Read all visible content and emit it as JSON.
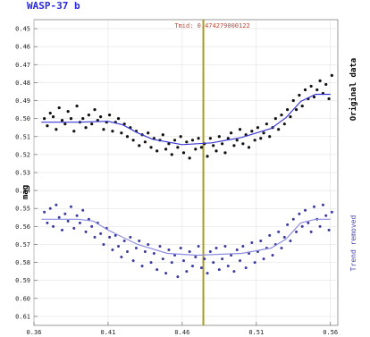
{
  "colors": {
    "original": "#111111",
    "detrended": "#3a3aa0",
    "fit": "#3b3bd4",
    "marker": "#a89a22",
    "title": "#2a2ae0",
    "annotation": "#c04a3a",
    "right_label_bottom": "#4a4ab0"
  },
  "chart_data": {
    "type": "scatter",
    "title": "WASP-37 b",
    "xlabel": "",
    "ylabel": "mag",
    "right_label_top": "Original data",
    "right_label_bottom": "Trend removed",
    "annotation": "Tmid: 0.474279000122",
    "tmid": 0.474279,
    "xlim": [
      0.36,
      0.565
    ],
    "ylim": [
      0.615,
      0.445
    ],
    "x_ticks": [
      0.36,
      0.41,
      0.46,
      0.51,
      0.56
    ],
    "x_tick_labels": [
      "0.36",
      "0.41",
      "0.46",
      "0.51",
      "0.56"
    ],
    "y_ticks": [
      0.45,
      0.46,
      0.47,
      0.48,
      0.49,
      0.5,
      0.51,
      0.52,
      0.53,
      0.54,
      0.55,
      0.56,
      0.57,
      0.58,
      0.59,
      0.6,
      0.61
    ],
    "y_tick_labels": [
      "0.45",
      "0.46",
      "0.47",
      "0.48",
      "0.49",
      "0.50",
      "0.51",
      "0.52",
      "0.53",
      "0.54",
      "0.55",
      "0.56",
      "0.57",
      "0.58",
      "0.59",
      "0.60",
      "0.61"
    ],
    "series": [
      {
        "name": "Original data",
        "fit": [
          [
            0.365,
            0.502
          ],
          [
            0.39,
            0.502
          ],
          [
            0.41,
            0.5015
          ],
          [
            0.42,
            0.5035
          ],
          [
            0.43,
            0.508
          ],
          [
            0.44,
            0.5115
          ],
          [
            0.46,
            0.5145
          ],
          [
            0.48,
            0.5135
          ],
          [
            0.5,
            0.5105
          ],
          [
            0.52,
            0.5055
          ],
          [
            0.53,
            0.4995
          ],
          [
            0.54,
            0.4905
          ],
          [
            0.55,
            0.4865
          ],
          [
            0.56,
            0.4865
          ]
        ],
        "points": [
          [
            0.367,
            0.5
          ],
          [
            0.369,
            0.504
          ],
          [
            0.371,
            0.497
          ],
          [
            0.373,
            0.499
          ],
          [
            0.375,
            0.506
          ],
          [
            0.377,
            0.494
          ],
          [
            0.379,
            0.501
          ],
          [
            0.381,
            0.503
          ],
          [
            0.383,
            0.496
          ],
          [
            0.385,
            0.5
          ],
          [
            0.387,
            0.507
          ],
          [
            0.389,
            0.493
          ],
          [
            0.391,
            0.502
          ],
          [
            0.393,
            0.5
          ],
          [
            0.395,
            0.505
          ],
          [
            0.397,
            0.498
          ],
          [
            0.399,
            0.503
          ],
          [
            0.401,
            0.495
          ],
          [
            0.403,
            0.501
          ],
          [
            0.405,
            0.499
          ],
          [
            0.407,
            0.506
          ],
          [
            0.409,
            0.502
          ],
          [
            0.411,
            0.498
          ],
          [
            0.413,
            0.507
          ],
          [
            0.415,
            0.502
          ],
          [
            0.417,
            0.5
          ],
          [
            0.419,
            0.508
          ],
          [
            0.421,
            0.503
          ],
          [
            0.423,
            0.51
          ],
          [
            0.425,
            0.505
          ],
          [
            0.427,
            0.512
          ],
          [
            0.429,
            0.507
          ],
          [
            0.431,
            0.515
          ],
          [
            0.433,
            0.509
          ],
          [
            0.435,
            0.513
          ],
          [
            0.437,
            0.508
          ],
          [
            0.439,
            0.516
          ],
          [
            0.441,
            0.511
          ],
          [
            0.443,
            0.518
          ],
          [
            0.445,
            0.512
          ],
          [
            0.447,
            0.509
          ],
          [
            0.449,
            0.517
          ],
          [
            0.451,
            0.514
          ],
          [
            0.453,
            0.52
          ],
          [
            0.455,
            0.512
          ],
          [
            0.457,
            0.516
          ],
          [
            0.459,
            0.51
          ],
          [
            0.461,
            0.519
          ],
          [
            0.463,
            0.513
          ],
          [
            0.465,
            0.522
          ],
          [
            0.467,
            0.512
          ],
          [
            0.469,
            0.517
          ],
          [
            0.471,
            0.511
          ],
          [
            0.473,
            0.516
          ],
          [
            0.475,
            0.514
          ],
          [
            0.477,
            0.521
          ],
          [
            0.479,
            0.511
          ],
          [
            0.481,
            0.515
          ],
          [
            0.483,
            0.518
          ],
          [
            0.485,
            0.51
          ],
          [
            0.487,
            0.514
          ],
          [
            0.489,
            0.519
          ],
          [
            0.491,
            0.511
          ],
          [
            0.493,
            0.508
          ],
          [
            0.495,
            0.515
          ],
          [
            0.497,
            0.512
          ],
          [
            0.499,
            0.506
          ],
          [
            0.501,
            0.514
          ],
          [
            0.503,
            0.509
          ],
          [
            0.505,
            0.516
          ],
          [
            0.507,
            0.507
          ],
          [
            0.509,
            0.512
          ],
          [
            0.511,
            0.505
          ],
          [
            0.513,
            0.511
          ],
          [
            0.515,
            0.508
          ],
          [
            0.517,
            0.503
          ],
          [
            0.519,
            0.51
          ],
          [
            0.521,
            0.505
          ],
          [
            0.523,
            0.5
          ],
          [
            0.525,
            0.506
          ],
          [
            0.527,
            0.498
          ],
          [
            0.529,
            0.503
          ],
          [
            0.531,
            0.495
          ],
          [
            0.533,
            0.499
          ],
          [
            0.535,
            0.49
          ],
          [
            0.537,
            0.495
          ],
          [
            0.539,
            0.487
          ],
          [
            0.541,
            0.493
          ],
          [
            0.543,
            0.484
          ],
          [
            0.545,
            0.489
          ],
          [
            0.547,
            0.482
          ],
          [
            0.549,
            0.488
          ],
          [
            0.551,
            0.484
          ],
          [
            0.553,
            0.479
          ],
          [
            0.555,
            0.486
          ],
          [
            0.557,
            0.481
          ],
          [
            0.559,
            0.489
          ],
          [
            0.561,
            0.476
          ]
        ]
      },
      {
        "name": "Trend removed",
        "fit": [
          [
            0.365,
            0.556
          ],
          [
            0.39,
            0.556
          ],
          [
            0.4,
            0.557
          ],
          [
            0.41,
            0.562
          ],
          [
            0.43,
            0.57
          ],
          [
            0.45,
            0.575
          ],
          [
            0.47,
            0.576
          ],
          [
            0.5,
            0.575
          ],
          [
            0.52,
            0.572
          ],
          [
            0.53,
            0.567
          ],
          [
            0.54,
            0.558
          ],
          [
            0.55,
            0.556
          ],
          [
            0.56,
            0.556
          ]
        ],
        "points": [
          [
            0.367,
            0.552
          ],
          [
            0.369,
            0.558
          ],
          [
            0.371,
            0.55
          ],
          [
            0.373,
            0.56
          ],
          [
            0.375,
            0.548
          ],
          [
            0.377,
            0.555
          ],
          [
            0.379,
            0.562
          ],
          [
            0.381,
            0.553
          ],
          [
            0.383,
            0.557
          ],
          [
            0.385,
            0.549
          ],
          [
            0.387,
            0.561
          ],
          [
            0.389,
            0.554
          ],
          [
            0.391,
            0.558
          ],
          [
            0.393,
            0.551
          ],
          [
            0.395,
            0.563
          ],
          [
            0.397,
            0.556
          ],
          [
            0.399,
            0.56
          ],
          [
            0.401,
            0.566
          ],
          [
            0.403,
            0.558
          ],
          [
            0.405,
            0.564
          ],
          [
            0.407,
            0.57
          ],
          [
            0.409,
            0.561
          ],
          [
            0.411,
            0.566
          ],
          [
            0.413,
            0.573
          ],
          [
            0.415,
            0.565
          ],
          [
            0.417,
            0.571
          ],
          [
            0.419,
            0.577
          ],
          [
            0.421,
            0.568
          ],
          [
            0.423,
            0.574
          ],
          [
            0.425,
            0.566
          ],
          [
            0.427,
            0.579
          ],
          [
            0.429,
            0.572
          ],
          [
            0.431,
            0.568
          ],
          [
            0.433,
            0.582
          ],
          [
            0.435,
            0.574
          ],
          [
            0.437,
            0.57
          ],
          [
            0.439,
            0.58
          ],
          [
            0.441,
            0.575
          ],
          [
            0.443,
            0.584
          ],
          [
            0.445,
            0.571
          ],
          [
            0.447,
            0.578
          ],
          [
            0.449,
            0.586
          ],
          [
            0.451,
            0.573
          ],
          [
            0.453,
            0.58
          ],
          [
            0.455,
            0.576
          ],
          [
            0.457,
            0.588
          ],
          [
            0.459,
            0.572
          ],
          [
            0.461,
            0.579
          ],
          [
            0.463,
            0.585
          ],
          [
            0.465,
            0.574
          ],
          [
            0.467,
            0.582
          ],
          [
            0.469,
            0.577
          ],
          [
            0.471,
            0.571
          ],
          [
            0.473,
            0.583
          ],
          [
            0.475,
            0.578
          ],
          [
            0.477,
            0.586
          ],
          [
            0.479,
            0.574
          ],
          [
            0.481,
            0.58
          ],
          [
            0.483,
            0.572
          ],
          [
            0.485,
            0.584
          ],
          [
            0.487,
            0.578
          ],
          [
            0.489,
            0.571
          ],
          [
            0.491,
            0.582
          ],
          [
            0.493,
            0.576
          ],
          [
            0.495,
            0.585
          ],
          [
            0.497,
            0.573
          ],
          [
            0.499,
            0.579
          ],
          [
            0.501,
            0.571
          ],
          [
            0.503,
            0.583
          ],
          [
            0.505,
            0.575
          ],
          [
            0.507,
            0.569
          ],
          [
            0.509,
            0.58
          ],
          [
            0.511,
            0.574
          ],
          [
            0.513,
            0.568
          ],
          [
            0.515,
            0.578
          ],
          [
            0.517,
            0.572
          ],
          [
            0.519,
            0.565
          ],
          [
            0.521,
            0.576
          ],
          [
            0.523,
            0.57
          ],
          [
            0.525,
            0.563
          ],
          [
            0.527,
            0.572
          ],
          [
            0.529,
            0.566
          ],
          [
            0.531,
            0.559
          ],
          [
            0.533,
            0.568
          ],
          [
            0.535,
            0.556
          ],
          [
            0.537,
            0.563
          ],
          [
            0.539,
            0.553
          ],
          [
            0.541,
            0.56
          ],
          [
            0.543,
            0.551
          ],
          [
            0.545,
            0.558
          ],
          [
            0.547,
            0.563
          ],
          [
            0.549,
            0.549
          ],
          [
            0.551,
            0.556
          ],
          [
            0.553,
            0.56
          ],
          [
            0.555,
            0.548
          ],
          [
            0.557,
            0.554
          ],
          [
            0.559,
            0.562
          ],
          [
            0.561,
            0.552
          ]
        ]
      }
    ]
  }
}
